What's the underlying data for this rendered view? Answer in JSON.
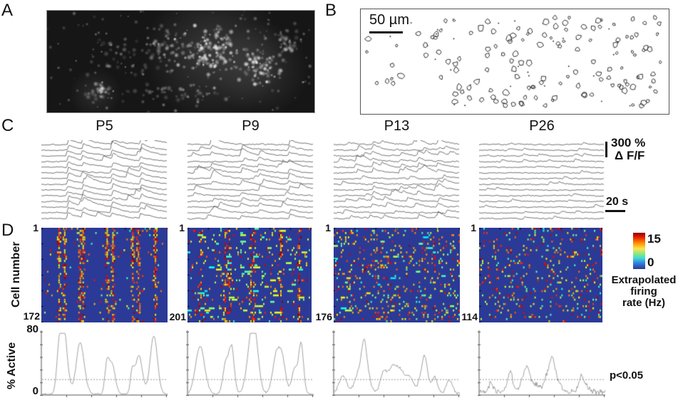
{
  "figure": {
    "panel_a": {
      "label": "A"
    },
    "panel_b": {
      "label": "B",
      "scale_bar_label": "50 µm"
    },
    "panel_c": {
      "label": "C",
      "ages": [
        {
          "age": "P5"
        },
        {
          "age": "P9"
        },
        {
          "age": "P13"
        },
        {
          "age": "P26"
        }
      ],
      "amplitude_value": "300 %",
      "amplitude_unit": "Δ F/F",
      "time_scale": "20 s"
    },
    "panel_d": {
      "label": "D",
      "y_label": "Cell number",
      "heatmaps": [
        {
          "first": "1",
          "count": "172"
        },
        {
          "first": "1",
          "count": "201"
        },
        {
          "first": "1",
          "count": "176"
        },
        {
          "first": "1",
          "count": "114"
        }
      ],
      "colorbar_max": "15",
      "colorbar_min": "0",
      "colorbar_label_line1": "Extrapolated",
      "colorbar_label_line2": "firing",
      "colorbar_label_line3": "rate (Hz)",
      "active_axis_max": "80",
      "active_axis_min": "0",
      "active_label": "% Active",
      "significance": "p<0.05"
    }
  },
  "chart_data": {
    "type": "heatmap",
    "ages": [
      "P5",
      "P9",
      "P13",
      "P26"
    ],
    "cell_counts": [
      172,
      201,
      176,
      114
    ],
    "colorbar": {
      "label": "Extrapolated firing rate (Hz)",
      "min": 0,
      "max": 15,
      "colormap": "jet",
      "key_colors": [
        "#8f0000",
        "#ff8c00",
        "#ffe34d",
        "#40d8d8",
        "#2b3a96"
      ]
    },
    "trace_scalebar": {
      "amplitude_percent": 300,
      "amplitude_unit": "ΔF/F",
      "time_seconds": 20
    },
    "contour_scalebar_um": 50,
    "percent_active": {
      "ylabel": "% Active",
      "ylim": [
        0,
        80
      ],
      "threshold_note": "p<0.05"
    }
  }
}
